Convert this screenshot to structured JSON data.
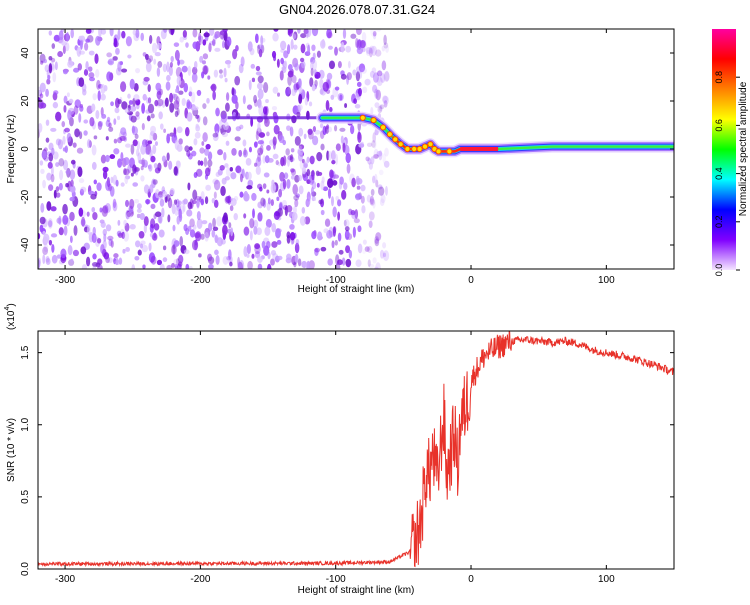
{
  "title": "GN04.2026.078.07.31.G24",
  "chart_data": [
    {
      "type": "heatmap",
      "xlabel": "Height of straight line (km)",
      "ylabel": "Frequency (Hz)",
      "xlim": [
        -320,
        150
      ],
      "ylim": [
        -50,
        50
      ],
      "x_ticks": [
        -300,
        -200,
        -100,
        0,
        100
      ],
      "y_ticks": [
        -40,
        -20,
        0,
        20,
        40
      ],
      "grid": false,
      "noise_region_x": [
        -320,
        -70
      ],
      "ridge": {
        "x": [
          -110,
          -80,
          -72,
          -65,
          -58,
          -52,
          -47,
          -42,
          -38,
          -34,
          -30,
          -27,
          -24,
          -20,
          -16,
          -12,
          -8,
          0,
          20,
          60,
          100,
          150
        ],
        "y": [
          13,
          13,
          12,
          9,
          5,
          2,
          0,
          0,
          0,
          1,
          2,
          0,
          -1,
          -1,
          -1,
          -1,
          0,
          0,
          0,
          1,
          1,
          1
        ]
      },
      "colorbar": {
        "label": "Normalized spectral amplitude",
        "ticks": [
          0.0,
          0.2,
          0.4,
          0.6,
          0.8
        ],
        "colors": [
          "#f5e6ff",
          "#8000ff",
          "#0000ff",
          "#00ffff",
          "#00ff00",
          "#ffff00",
          "#ff8000",
          "#ff0000",
          "#ff00a0"
        ]
      }
    },
    {
      "type": "line",
      "xlabel": "Height of straight line (km)",
      "ylabel": "SNR (10 * v/v)",
      "y_multiplier_base": "(x10",
      "y_multiplier_exp": "4",
      "y_multiplier_close": ")",
      "xlim": [
        -320,
        150
      ],
      "ylim": [
        0,
        16500
      ],
      "x_ticks": [
        -300,
        -200,
        -100,
        0,
        100
      ],
      "y_ticks": [
        0,
        5000,
        10000,
        15000
      ],
      "y_tick_labels": [
        "0.0",
        "0.5",
        "1.0",
        "1.5"
      ],
      "grid": false,
      "color": "#e8322a",
      "series": [
        {
          "x": [
            -320,
            -100,
            -60,
            -45,
            -38,
            -35,
            -33,
            -31,
            -28,
            -25,
            -22,
            -20,
            -18,
            -15,
            -12,
            -10,
            -8,
            -5,
            -2,
            0,
            5,
            10,
            20,
            30,
            40,
            50,
            60,
            70,
            80,
            90,
            100,
            110,
            120,
            130,
            140,
            150
          ],
          "y": [
            350,
            400,
            500,
            1200,
            2800,
            5000,
            7000,
            6500,
            8000,
            6000,
            9000,
            10500,
            6500,
            8000,
            9500,
            7000,
            10000,
            11000,
            12000,
            13000,
            14000,
            14800,
            15400,
            15800,
            15900,
            15800,
            15700,
            15800,
            15600,
            15200,
            15000,
            14800,
            14600,
            14300,
            14000,
            13600
          ]
        }
      ]
    }
  ]
}
